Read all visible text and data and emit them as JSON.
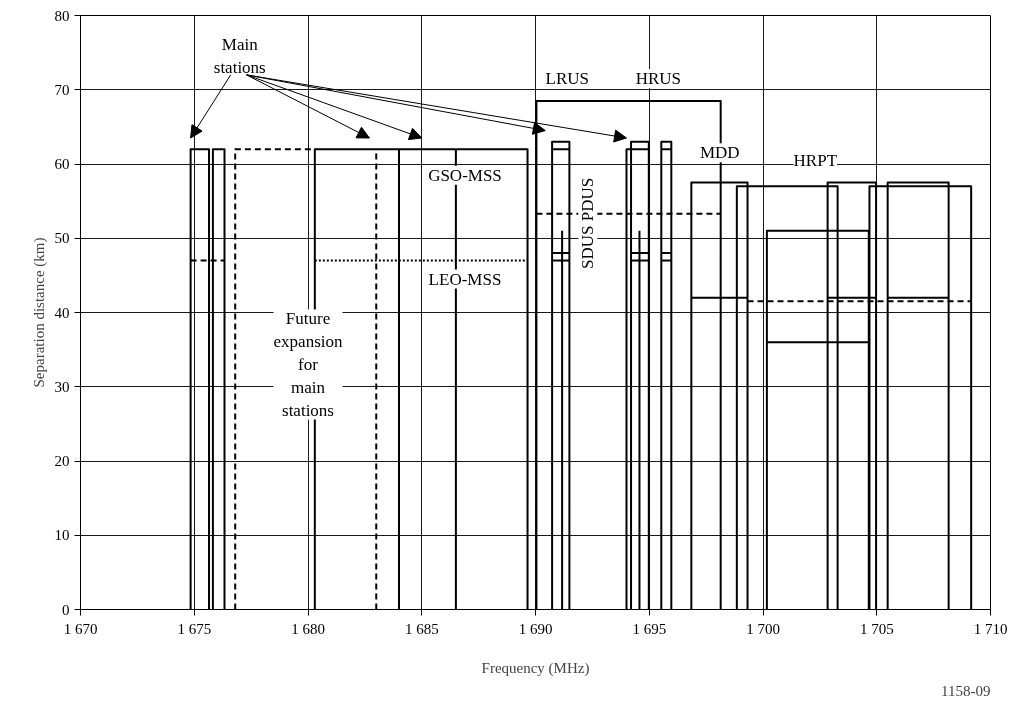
{
  "chart_data": {
    "type": "line",
    "xlabel": "Frequency (MHz)",
    "ylabel": "Separation distance (km)",
    "xlim": [
      1670,
      1710
    ],
    "ylim": [
      0,
      80
    ],
    "xticks": [
      {
        "value": 1670,
        "label": "1 670"
      },
      {
        "value": 1675,
        "label": "1 675"
      },
      {
        "value": 1680,
        "label": "1 680"
      },
      {
        "value": 1685,
        "label": "1 685"
      },
      {
        "value": 1690,
        "label": "1 690"
      },
      {
        "value": 1695,
        "label": "1 695"
      },
      {
        "value": 1700,
        "label": "1 700"
      },
      {
        "value": 1705,
        "label": "1 705"
      },
      {
        "value": 1710,
        "label": "1 710"
      }
    ],
    "yticks": [
      0,
      10,
      20,
      30,
      40,
      50,
      60,
      70,
      80
    ],
    "grid": true,
    "marker": "none",
    "series": [
      {
        "color": "#000000",
        "line_style": "solid",
        "x": [
          1674.84,
          1674.84,
          1675.65,
          1675.65
        ],
        "values": [
          0,
          62,
          62,
          0
        ]
      },
      {
        "color": "#000000",
        "line_style": "solid",
        "x": [
          1675.82,
          1675.82,
          1676.33,
          1676.33
        ],
        "values": [
          0,
          62,
          62,
          0
        ]
      },
      {
        "color": "#000000",
        "line_style": "dashed",
        "x": [
          1674.84,
          1676.33
        ],
        "values": [
          47,
          47
        ]
      },
      {
        "color": "#000000",
        "line_style": "dashed",
        "x": [
          1676.8,
          1676.8,
          1680.3
        ],
        "values": [
          0,
          62,
          62
        ]
      },
      {
        "color": "#000000",
        "line_style": "dashed",
        "x": [
          1683,
          1683
        ],
        "values": [
          0,
          62
        ]
      },
      {
        "color": "#000000",
        "line_style": "solid",
        "x": [
          1680.3,
          1680.3,
          1689.65,
          1689.65
        ],
        "values": [
          0,
          62,
          62,
          0
        ]
      },
      {
        "color": "#000000",
        "line_style": "solid",
        "x": [
          1684,
          1684
        ],
        "values": [
          0,
          62
        ]
      },
      {
        "color": "#000000",
        "line_style": "solid",
        "x": [
          1686.5,
          1686.5
        ],
        "values": [
          0,
          62
        ]
      },
      {
        "color": "#000000",
        "line_style": "dotted",
        "x": [
          1680.3,
          1689.65
        ],
        "values": [
          47,
          47
        ]
      },
      {
        "color": "#000000",
        "line_style": "solid",
        "x": [
          1690.04,
          1690.04,
          1698.14,
          1698.14
        ],
        "values": [
          0,
          68.5,
          68.5,
          0
        ]
      },
      {
        "color": "#000000",
        "line_style": "dashed",
        "x": [
          1690.04,
          1698.14
        ],
        "values": [
          53.3,
          53.3
        ]
      },
      {
        "color": "#000000",
        "line_style": "solid",
        "x": [
          1690.73,
          1690.73,
          1691.49,
          1691.49
        ],
        "values": [
          0,
          63,
          63,
          0
        ]
      },
      {
        "color": "#000000",
        "line_style": "solid",
        "x": [
          1690.73,
          1691.49
        ],
        "values": [
          62,
          62
        ]
      },
      {
        "color": "#000000",
        "line_style": "solid",
        "x": [
          1690.73,
          1691.49
        ],
        "values": [
          48,
          48
        ]
      },
      {
        "color": "#000000",
        "line_style": "solid",
        "x": [
          1690.73,
          1691.49
        ],
        "values": [
          47,
          47
        ]
      },
      {
        "color": "#000000",
        "line_style": "solid",
        "x": [
          1691.17,
          1691.17
        ],
        "values": [
          0,
          51
        ]
      },
      {
        "color": "#000000",
        "line_style": "solid",
        "x": [
          1694.2,
          1694.2,
          1694.98,
          1694.98
        ],
        "values": [
          0,
          63,
          63,
          0
        ]
      },
      {
        "color": "#000000",
        "line_style": "solid",
        "x": [
          1694.0,
          1694.0,
          1694.98
        ],
        "values": [
          0,
          62,
          62
        ]
      },
      {
        "color": "#000000",
        "line_style": "solid",
        "x": [
          1694.2,
          1694.98
        ],
        "values": [
          48,
          48
        ]
      },
      {
        "color": "#000000",
        "line_style": "solid",
        "x": [
          1694.2,
          1694.98
        ],
        "values": [
          47,
          47
        ]
      },
      {
        "color": "#000000",
        "line_style": "solid",
        "x": [
          1694.57,
          1694.57
        ],
        "values": [
          0,
          51
        ]
      },
      {
        "color": "#000000",
        "line_style": "solid",
        "x": [
          1695.53,
          1695.53,
          1695.97,
          1695.97
        ],
        "values": [
          0,
          63,
          63,
          0
        ]
      },
      {
        "color": "#000000",
        "line_style": "solid",
        "x": [
          1695.53,
          1695.97
        ],
        "values": [
          62,
          62
        ]
      },
      {
        "color": "#000000",
        "line_style": "solid",
        "x": [
          1695.53,
          1695.97
        ],
        "values": [
          48,
          48
        ]
      },
      {
        "color": "#000000",
        "line_style": "solid",
        "x": [
          1695.53,
          1695.97
        ],
        "values": [
          47,
          47
        ]
      },
      {
        "color": "#000000",
        "line_style": "solid",
        "x": [
          1696.85,
          1696.85,
          1699.32,
          1699.32
        ],
        "values": [
          0,
          57.5,
          57.5,
          0
        ]
      },
      {
        "color": "#000000",
        "line_style": "solid",
        "x": [
          1696.85,
          1699.32
        ],
        "values": [
          42,
          42
        ]
      },
      {
        "color": "#000000",
        "line_style": "solid",
        "x": [
          1698.85,
          1698.85,
          1703.28,
          1703.28
        ],
        "values": [
          0,
          57,
          57,
          0
        ]
      },
      {
        "color": "#000000",
        "line_style": "solid",
        "x": [
          1700.17,
          1700.17,
          1704.65,
          1704.65
        ],
        "values": [
          0,
          51,
          51,
          0
        ]
      },
      {
        "color": "#000000",
        "line_style": "solid",
        "x": [
          1700.17,
          1704.65
        ],
        "values": [
          36,
          36
        ]
      },
      {
        "color": "#000000",
        "line_style": "solid",
        "x": [
          1702.84,
          1702.84,
          1704.97,
          1704.97
        ],
        "values": [
          0,
          57.5,
          57.5,
          0
        ]
      },
      {
        "color": "#000000",
        "line_style": "solid",
        "x": [
          1702.84,
          1704.97
        ],
        "values": [
          42,
          42
        ]
      },
      {
        "color": "#000000",
        "line_style": "solid",
        "x": [
          1704.68,
          1704.68,
          1709.15,
          1709.15
        ],
        "values": [
          0,
          57,
          57,
          0
        ]
      },
      {
        "color": "#000000",
        "line_style": "solid",
        "x": [
          1705.48,
          1705.48,
          1708.16,
          1708.16
        ],
        "values": [
          0,
          57.5,
          57.5,
          0
        ]
      },
      {
        "color": "#000000",
        "line_style": "solid",
        "x": [
          1705.48,
          1708.16
        ],
        "values": [
          42,
          42
        ]
      },
      {
        "color": "#000000",
        "line_style": "dashed",
        "x": [
          1699.32,
          1709.15
        ],
        "values": [
          41.5,
          41.5
        ]
      }
    ],
    "annotations": [
      "Main\nstations",
      "LRUS",
      "HRUS",
      "MDD",
      "HRPT",
      "GSO-MSS",
      "LEO-MSS",
      "Future\nexpansion\nfor\nmain\nstations",
      "SDUS PDUS",
      "1158-09"
    ]
  }
}
